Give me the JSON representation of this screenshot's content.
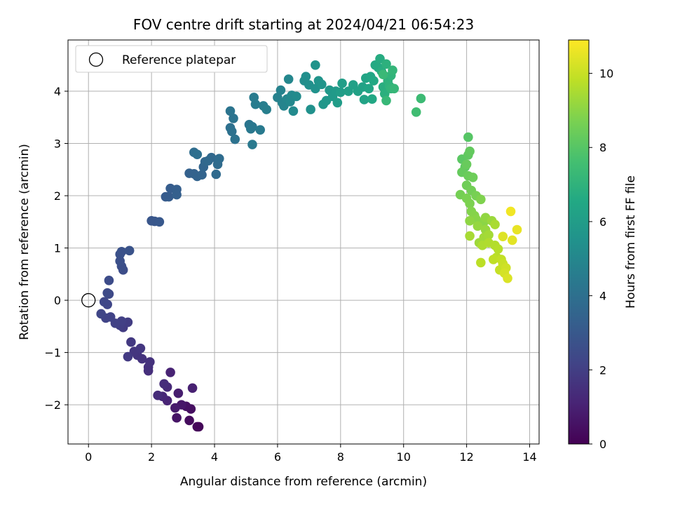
{
  "chart_data": {
    "type": "scatter",
    "title": "FOV centre drift starting at 2024/04/21 06:54:23",
    "xlabel": "Angular distance from reference (arcmin)",
    "ylabel": "Rotation from reference (arcmin)",
    "xlim": [
      -0.65,
      14.3
    ],
    "ylim": [
      -2.75,
      4.98
    ],
    "xticks": [
      "0",
      "2",
      "4",
      "6",
      "8",
      "10",
      "12",
      "14"
    ],
    "yticks": [
      "−2",
      "−1",
      "0",
      "1",
      "2",
      "3",
      "4"
    ],
    "grid": true,
    "legend": {
      "position": "top-left",
      "entries": [
        "Reference platepar"
      ]
    },
    "reference_point": {
      "x": 0,
      "y": 0
    },
    "colorbar": {
      "label": "Hours from first FF file",
      "range": [
        0,
        10.9
      ],
      "ticks": [
        "0",
        "2",
        "4",
        "6",
        "8",
        "10"
      ],
      "colormap": "viridis"
    },
    "points": [
      [
        3.5,
        -2.42,
        0.1
      ],
      [
        3.45,
        -2.42,
        0.2
      ],
      [
        3.2,
        -2.3,
        0.3
      ],
      [
        3.25,
        -2.08,
        0.4
      ],
      [
        3.1,
        -2.03,
        0.5
      ],
      [
        2.8,
        -2.25,
        0.6
      ],
      [
        2.95,
        -2.0,
        0.7
      ],
      [
        2.75,
        -2.06,
        0.8
      ],
      [
        2.85,
        -1.78,
        0.9
      ],
      [
        3.3,
        -1.68,
        1.0
      ],
      [
        2.6,
        -1.38,
        1.05
      ],
      [
        2.5,
        -1.92,
        1.1
      ],
      [
        2.35,
        -1.84,
        1.2
      ],
      [
        2.5,
        -1.66,
        1.3
      ],
      [
        2.2,
        -1.82,
        1.35
      ],
      [
        2.4,
        -1.6,
        1.4
      ],
      [
        1.9,
        -1.35,
        1.45
      ],
      [
        1.9,
        -1.28,
        1.5
      ],
      [
        1.95,
        -1.18,
        1.55
      ],
      [
        1.7,
        -1.12,
        1.6
      ],
      [
        1.55,
        -1.05,
        1.65
      ],
      [
        1.45,
        -0.98,
        1.7
      ],
      [
        1.65,
        -0.92,
        1.75
      ],
      [
        1.35,
        -0.8,
        1.8
      ],
      [
        1.25,
        -1.08,
        1.85
      ],
      [
        1.1,
        -0.52,
        1.9
      ],
      [
        1.25,
        -0.42,
        1.95
      ],
      [
        1.0,
        -0.48,
        2.0
      ],
      [
        1.05,
        -0.4,
        2.05
      ],
      [
        0.85,
        -0.44,
        2.1
      ],
      [
        0.7,
        -0.32,
        2.15
      ],
      [
        0.55,
        -0.34,
        2.2
      ],
      [
        0.4,
        -0.26,
        2.25
      ],
      [
        0.6,
        -0.08,
        2.3
      ],
      [
        0.5,
        -0.03,
        2.35
      ],
      [
        0.65,
        0.12,
        2.4
      ],
      [
        0.6,
        0.14,
        2.45
      ],
      [
        0.65,
        0.38,
        2.5
      ],
      [
        1.1,
        0.58,
        2.55
      ],
      [
        1.05,
        0.65,
        2.6
      ],
      [
        1.0,
        0.75,
        2.65
      ],
      [
        1.0,
        0.88,
        2.7
      ],
      [
        1.05,
        0.93,
        2.75
      ],
      [
        1.3,
        0.95,
        2.8
      ],
      [
        2.0,
        1.52,
        2.9
      ],
      [
        2.1,
        1.51,
        2.95
      ],
      [
        2.25,
        1.5,
        3.0
      ],
      [
        2.45,
        1.98,
        3.1
      ],
      [
        2.55,
        1.98,
        3.15
      ],
      [
        2.6,
        2.14,
        3.2
      ],
      [
        2.8,
        2.12,
        3.25
      ],
      [
        2.8,
        2.02,
        3.3
      ],
      [
        3.2,
        2.43,
        3.35
      ],
      [
        3.35,
        2.42,
        3.4
      ],
      [
        3.45,
        2.37,
        3.45
      ],
      [
        3.6,
        2.4,
        3.5
      ],
      [
        3.65,
        2.55,
        3.55
      ],
      [
        3.7,
        2.65,
        3.6
      ],
      [
        3.9,
        2.73,
        3.65
      ],
      [
        3.8,
        2.67,
        3.7
      ],
      [
        4.05,
        2.41,
        3.75
      ],
      [
        4.1,
        2.6,
        3.8
      ],
      [
        4.15,
        2.71,
        3.85
      ],
      [
        3.35,
        2.83,
        3.9
      ],
      [
        3.45,
        2.79,
        3.95
      ],
      [
        4.5,
        3.3,
        4.0
      ],
      [
        4.55,
        3.23,
        4.05
      ],
      [
        4.65,
        3.08,
        4.1
      ],
      [
        4.6,
        3.48,
        4.15
      ],
      [
        4.5,
        3.62,
        4.2
      ],
      [
        5.1,
        3.36,
        4.25
      ],
      [
        5.2,
        3.32,
        4.3
      ],
      [
        5.15,
        3.28,
        4.35
      ],
      [
        5.2,
        2.98,
        4.4
      ],
      [
        5.45,
        3.26,
        4.45
      ],
      [
        5.25,
        3.88,
        4.5
      ],
      [
        5.3,
        3.75,
        4.55
      ],
      [
        5.55,
        3.72,
        4.6
      ],
      [
        5.65,
        3.65,
        4.65
      ],
      [
        6.0,
        3.88,
        4.75
      ],
      [
        6.1,
        4.02,
        4.8
      ],
      [
        6.15,
        3.78,
        4.85
      ],
      [
        6.2,
        3.72,
        4.9
      ],
      [
        6.3,
        3.85,
        4.95
      ],
      [
        6.35,
        4.23,
        5.0
      ],
      [
        6.4,
        3.8,
        5.05
      ],
      [
        6.45,
        3.92,
        5.1
      ],
      [
        6.5,
        3.62,
        5.15
      ],
      [
        6.6,
        3.9,
        5.2
      ],
      [
        6.85,
        4.2,
        5.3
      ],
      [
        6.9,
        4.28,
        5.35
      ],
      [
        7.0,
        4.12,
        5.4
      ],
      [
        7.05,
        3.65,
        5.45
      ],
      [
        7.2,
        4.05,
        5.5
      ],
      [
        7.2,
        4.5,
        5.55
      ],
      [
        7.3,
        4.2,
        5.6
      ],
      [
        7.4,
        4.13,
        5.65
      ],
      [
        7.45,
        3.75,
        5.7
      ],
      [
        7.55,
        3.82,
        5.75
      ],
      [
        7.65,
        4.02,
        5.8
      ],
      [
        7.75,
        3.9,
        5.85
      ],
      [
        7.85,
        4.0,
        5.9
      ],
      [
        7.9,
        3.78,
        5.95
      ],
      [
        8.0,
        3.98,
        6.0
      ],
      [
        8.05,
        4.15,
        6.05
      ],
      [
        8.25,
        4.0,
        6.1
      ],
      [
        8.4,
        4.12,
        6.15
      ],
      [
        8.55,
        4.0,
        6.2
      ],
      [
        8.7,
        4.08,
        6.25
      ],
      [
        8.75,
        3.84,
        6.3
      ],
      [
        8.8,
        4.25,
        6.35
      ],
      [
        8.9,
        4.05,
        6.4
      ],
      [
        8.95,
        4.28,
        6.45
      ],
      [
        9.0,
        3.85,
        6.5
      ],
      [
        9.05,
        4.2,
        6.55
      ],
      [
        9.1,
        4.5,
        6.6
      ],
      [
        9.2,
        4.45,
        6.65
      ],
      [
        9.25,
        4.62,
        6.7
      ],
      [
        9.3,
        4.38,
        6.75
      ],
      [
        9.35,
        4.08,
        6.8
      ],
      [
        9.4,
        3.95,
        6.85
      ],
      [
        9.45,
        4.52,
        6.9
      ],
      [
        9.5,
        4.2,
        6.95
      ],
      [
        9.55,
        4.1,
        7.0
      ],
      [
        9.6,
        4.3,
        7.05
      ],
      [
        9.6,
        4.05,
        7.1
      ],
      [
        9.65,
        4.4,
        7.15
      ],
      [
        9.7,
        4.05,
        7.2
      ],
      [
        9.45,
        3.82,
        7.25
      ],
      [
        9.35,
        4.32,
        7.3
      ],
      [
        10.55,
        3.86,
        7.4
      ],
      [
        10.4,
        3.6,
        7.5
      ],
      [
        12.05,
        3.12,
        8.0
      ],
      [
        11.85,
        2.7,
        8.1
      ],
      [
        11.95,
        2.55,
        8.15
      ],
      [
        12.05,
        2.78,
        8.2
      ],
      [
        12.1,
        2.85,
        8.25
      ],
      [
        11.85,
        2.45,
        8.3
      ],
      [
        12.0,
        2.6,
        8.35
      ],
      [
        12.05,
        2.38,
        8.4
      ],
      [
        12.2,
        2.35,
        8.45
      ],
      [
        12.0,
        2.2,
        8.5
      ],
      [
        12.15,
        2.1,
        8.55
      ],
      [
        11.8,
        2.02,
        8.6
      ],
      [
        12.3,
        2.0,
        8.65
      ],
      [
        12.0,
        1.95,
        8.7
      ],
      [
        12.1,
        1.85,
        8.75
      ],
      [
        12.45,
        1.93,
        8.8
      ],
      [
        12.15,
        1.7,
        8.85
      ],
      [
        12.25,
        1.62,
        8.9
      ],
      [
        12.3,
        1.55,
        8.95
      ],
      [
        12.55,
        1.5,
        9.0
      ],
      [
        12.1,
        1.52,
        9.05
      ],
      [
        12.6,
        1.58,
        9.1
      ],
      [
        12.35,
        1.42,
        9.15
      ],
      [
        12.6,
        1.35,
        9.2
      ],
      [
        12.8,
        1.52,
        9.25
      ],
      [
        12.4,
        1.1,
        9.3
      ],
      [
        12.55,
        1.2,
        9.35
      ],
      [
        12.7,
        1.25,
        9.4
      ],
      [
        12.1,
        1.23,
        9.45
      ],
      [
        12.9,
        1.45,
        9.5
      ],
      [
        12.5,
        1.05,
        9.55
      ],
      [
        12.7,
        1.1,
        9.6
      ],
      [
        12.9,
        1.05,
        9.65
      ],
      [
        13.0,
        0.98,
        9.7
      ],
      [
        12.95,
        0.82,
        9.75
      ],
      [
        12.45,
        0.72,
        9.8
      ],
      [
        12.85,
        0.78,
        9.85
      ],
      [
        13.1,
        0.78,
        9.9
      ],
      [
        13.05,
        0.58,
        9.95
      ],
      [
        13.15,
        0.7,
        10.0
      ],
      [
        13.25,
        0.62,
        10.1
      ],
      [
        13.2,
        0.52,
        10.2
      ],
      [
        13.3,
        0.42,
        10.3
      ],
      [
        13.15,
        1.22,
        10.35
      ],
      [
        13.45,
        1.15,
        10.45
      ],
      [
        13.6,
        1.35,
        10.55
      ],
      [
        13.4,
        1.7,
        10.7
      ]
    ]
  }
}
